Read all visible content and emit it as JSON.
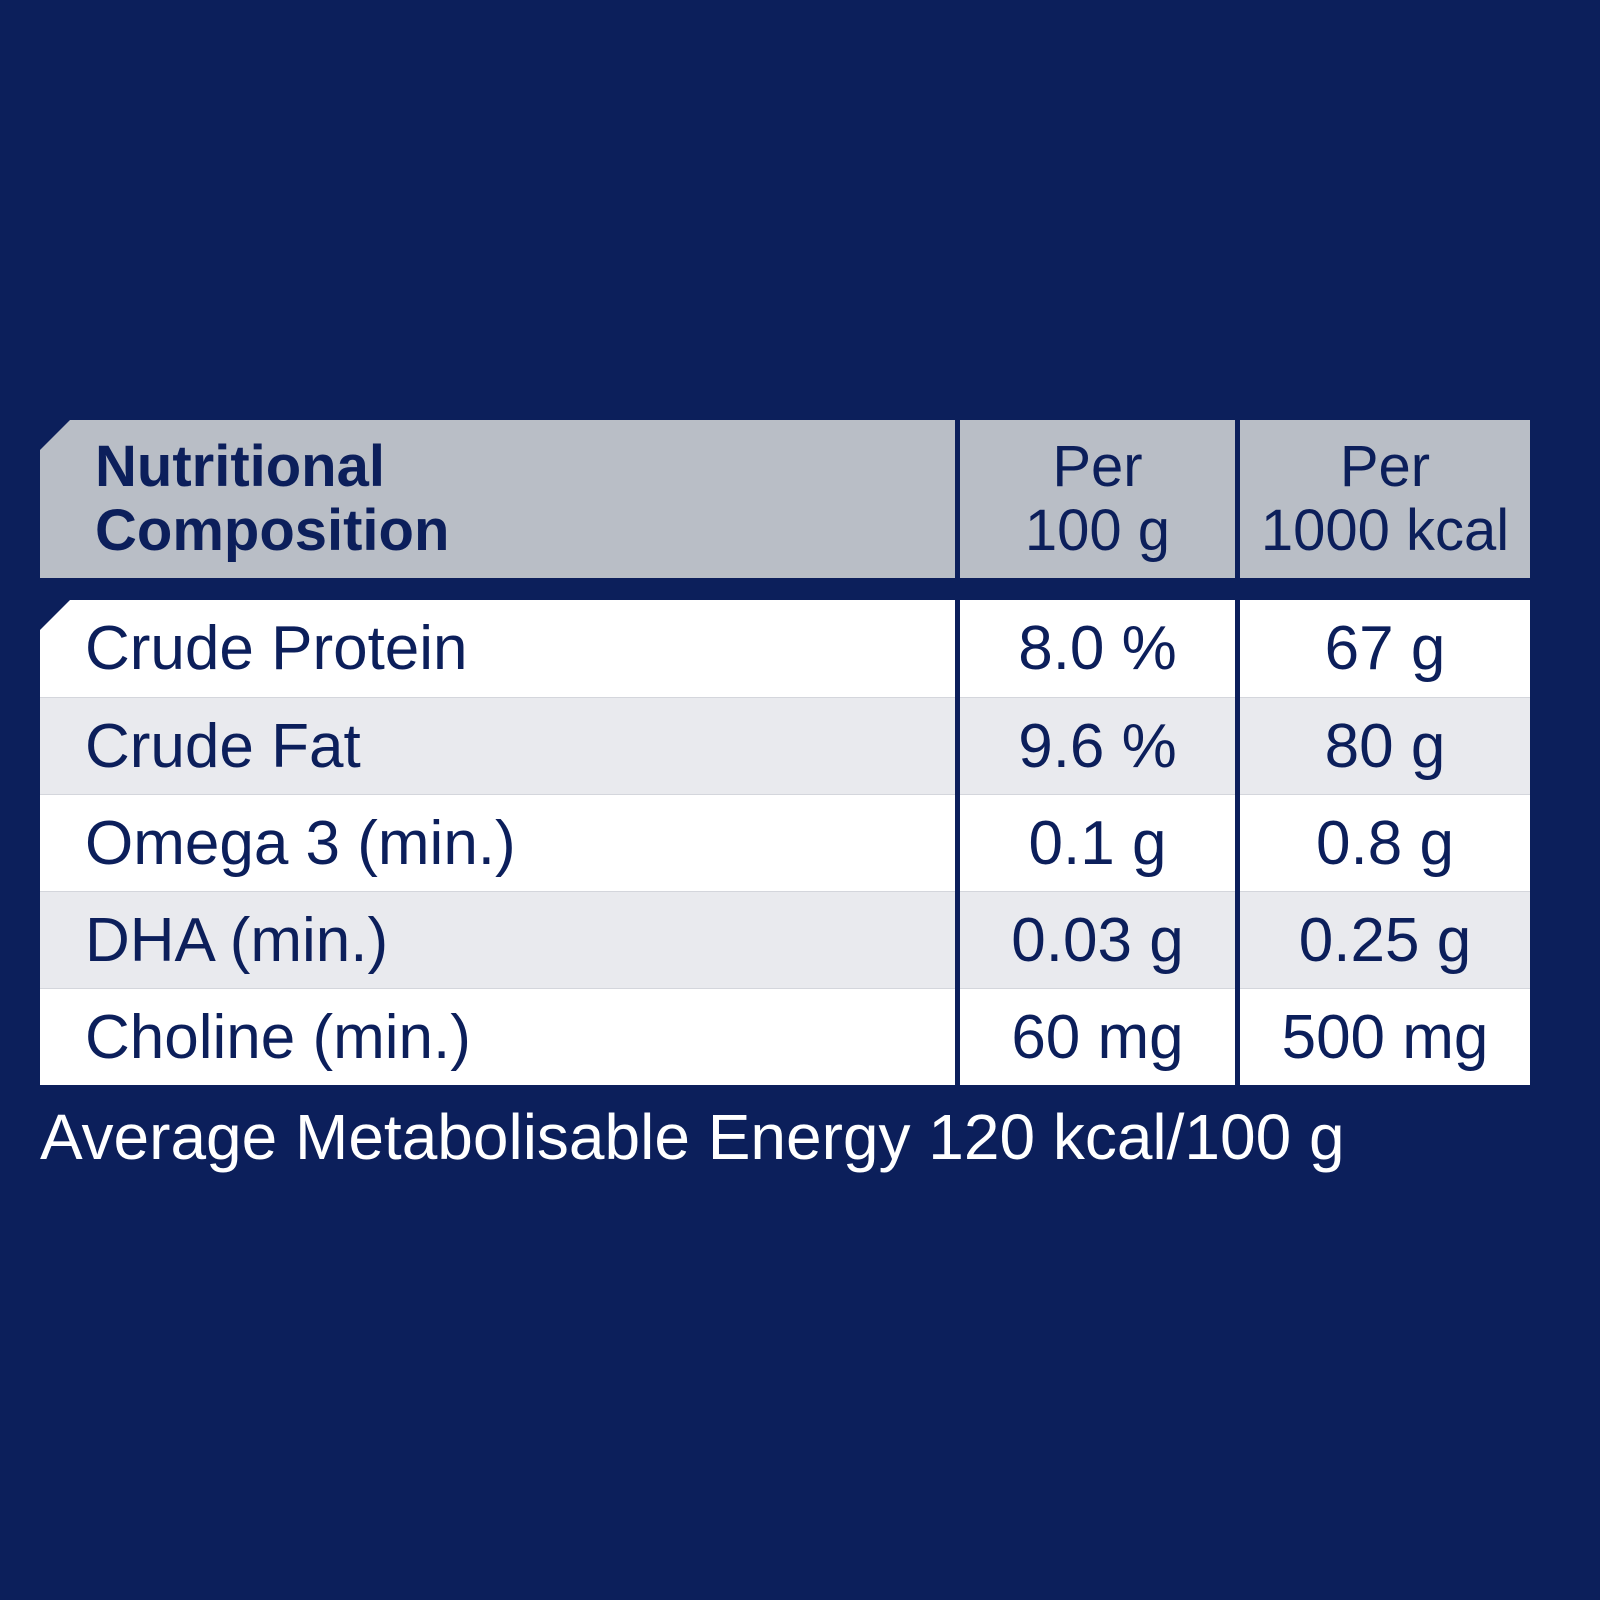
{
  "header": {
    "columns": [
      [
        "Nutritional",
        "Composition"
      ],
      [
        "Per",
        "100 g"
      ],
      [
        "Per",
        "1000 kcal"
      ]
    ]
  },
  "table": {
    "rows": [
      [
        "Crude Protein",
        "8.0 %",
        "67 g"
      ],
      [
        "Crude Fat",
        "9.6 %",
        "80 g"
      ],
      [
        "Omega 3 (min.)",
        "0.1 g",
        "0.8 g"
      ],
      [
        "DHA (min.)",
        "0.03 g",
        "0.25 g"
      ],
      [
        "Choline (min.)",
        "60 mg",
        "500 mg"
      ]
    ]
  },
  "footer": {
    "text": "Average Metabolisable Energy 120 kcal/100 g"
  }
}
